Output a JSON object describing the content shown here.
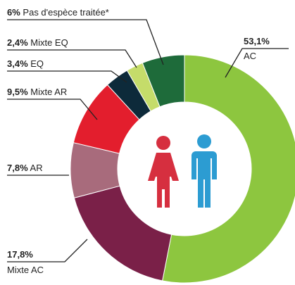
{
  "chart_data": {
    "type": "donut",
    "categories": [
      "AC",
      "Mixte AC",
      "AR",
      "Mixte AR",
      "EQ",
      "Mixte EQ",
      "Pas d'espèce traitée*"
    ],
    "values": [
      53.1,
      17.8,
      7.8,
      9.5,
      3.4,
      2.4,
      6
    ],
    "value_labels": [
      "53,1%",
      "17,8%",
      "7,8%",
      "9,5%",
      "3,4%",
      "2,4%",
      "6%"
    ],
    "colors": [
      "#8dc63f",
      "#7a2048",
      "#a86b7c",
      "#e31e2d",
      "#0d2a3a",
      "#c5dc6a",
      "#1e6b3a"
    ]
  }
}
